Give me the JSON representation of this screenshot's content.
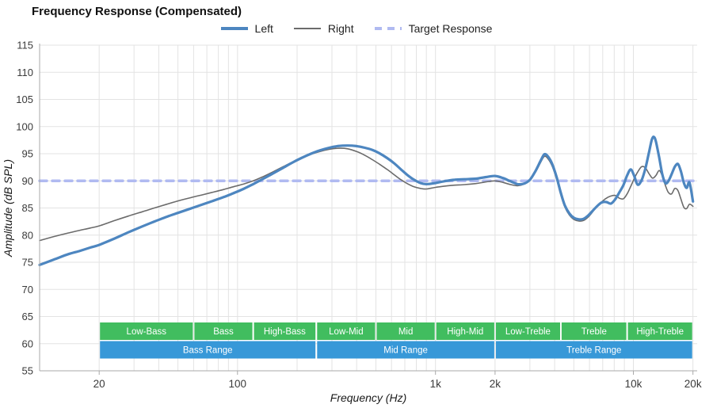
{
  "title": "Frequency Response (Compensated)",
  "legend": {
    "items": [
      {
        "label": "Left",
        "color": "#4d86c0",
        "style": "solid",
        "thickness": 4
      },
      {
        "label": "Right",
        "color": "#6b6b6b",
        "style": "solid",
        "thickness": 2
      },
      {
        "label": "Target Response",
        "color": "#b0baf1",
        "style": "dashed",
        "thickness": 4
      }
    ]
  },
  "chart_data": {
    "type": "line",
    "title": "Frequency Response (Compensated)",
    "xlabel": "Frequency (Hz)",
    "ylabel": "Amplitude (dB SPL)",
    "x_scale": "log",
    "x_range": [
      10,
      21000
    ],
    "y_range": [
      55,
      115
    ],
    "y_ticks": [
      55,
      60,
      65,
      70,
      75,
      80,
      85,
      90,
      95,
      100,
      105,
      110,
      115
    ],
    "x_ticks": [
      {
        "value": 20,
        "label": "20"
      },
      {
        "value": 100,
        "label": "100"
      },
      {
        "value": 1000,
        "label": "1k"
      },
      {
        "value": 2000,
        "label": "2k"
      },
      {
        "value": 10000,
        "label": "10k"
      },
      {
        "value": 20000,
        "label": "20k"
      }
    ],
    "x_gridlines": [
      20,
      30,
      40,
      50,
      60,
      70,
      80,
      90,
      100,
      200,
      300,
      400,
      500,
      600,
      700,
      800,
      900,
      1000,
      2000,
      3000,
      4000,
      5000,
      6000,
      7000,
      8000,
      9000,
      10000,
      20000
    ],
    "target_level": 90,
    "colors": {
      "grid": "#e3e3e3",
      "axis": "#a9a9a9",
      "tick_text": "#3a3a3a",
      "axis_title_text": "#1a1a1a",
      "band_green": "#41bd5f",
      "band_blue": "#3798d8",
      "band_text": "#ffffff"
    },
    "series": [
      {
        "name": "Left",
        "color": "#4d86c0",
        "width": 3.2,
        "dash": null,
        "points": [
          [
            10,
            74.5
          ],
          [
            12,
            75.6
          ],
          [
            14,
            76.5
          ],
          [
            16,
            77.1
          ],
          [
            18,
            77.7
          ],
          [
            20,
            78.2
          ],
          [
            24,
            79.4
          ],
          [
            28,
            80.5
          ],
          [
            33,
            81.6
          ],
          [
            38,
            82.5
          ],
          [
            44,
            83.4
          ],
          [
            50,
            84.1
          ],
          [
            58,
            84.9
          ],
          [
            66,
            85.6
          ],
          [
            75,
            86.3
          ],
          [
            85,
            87.0
          ],
          [
            95,
            87.7
          ],
          [
            107,
            88.5
          ],
          [
            120,
            89.4
          ],
          [
            135,
            90.4
          ],
          [
            150,
            91.3
          ],
          [
            170,
            92.4
          ],
          [
            190,
            93.4
          ],
          [
            210,
            94.2
          ],
          [
            235,
            95.0
          ],
          [
            260,
            95.6
          ],
          [
            290,
            96.1
          ],
          [
            320,
            96.4
          ],
          [
            360,
            96.5
          ],
          [
            400,
            96.4
          ],
          [
            440,
            96.1
          ],
          [
            480,
            95.7
          ],
          [
            520,
            95.1
          ],
          [
            570,
            94.2
          ],
          [
            620,
            93.2
          ],
          [
            670,
            92.1
          ],
          [
            720,
            91.1
          ],
          [
            780,
            90.2
          ],
          [
            840,
            89.6
          ],
          [
            900,
            89.4
          ],
          [
            1000,
            89.6
          ],
          [
            1100,
            89.9
          ],
          [
            1250,
            90.2
          ],
          [
            1400,
            90.3
          ],
          [
            1600,
            90.4
          ],
          [
            1800,
            90.7
          ],
          [
            2000,
            90.9
          ],
          [
            2200,
            90.5
          ],
          [
            2400,
            89.9
          ],
          [
            2600,
            89.4
          ],
          [
            2800,
            89.5
          ],
          [
            3000,
            90.2
          ],
          [
            3200,
            91.8
          ],
          [
            3400,
            93.7
          ],
          [
            3550,
            94.9
          ],
          [
            3700,
            94.5
          ],
          [
            3900,
            93.0
          ],
          [
            4100,
            90.6
          ],
          [
            4300,
            87.8
          ],
          [
            4500,
            85.5
          ],
          [
            4750,
            84.0
          ],
          [
            5000,
            83.2
          ],
          [
            5300,
            82.9
          ],
          [
            5600,
            83.0
          ],
          [
            5900,
            83.6
          ],
          [
            6200,
            84.4
          ],
          [
            6500,
            85.2
          ],
          [
            6900,
            86.0
          ],
          [
            7300,
            86.1
          ],
          [
            7700,
            85.8
          ],
          [
            8100,
            86.6
          ],
          [
            8500,
            87.9
          ],
          [
            8900,
            89.2
          ],
          [
            9300,
            91.0
          ],
          [
            9700,
            92.1
          ],
          [
            10100,
            90.9
          ],
          [
            10500,
            89.3
          ],
          [
            11000,
            90.1
          ],
          [
            11500,
            92.3
          ],
          [
            12000,
            95.3
          ],
          [
            12400,
            97.6
          ],
          [
            12700,
            98.1
          ],
          [
            13000,
            97.2
          ],
          [
            13500,
            94.3
          ],
          [
            14000,
            91.2
          ],
          [
            14500,
            89.6
          ],
          [
            15000,
            89.9
          ],
          [
            15600,
            91.2
          ],
          [
            16200,
            92.6
          ],
          [
            16800,
            93.1
          ],
          [
            17400,
            91.7
          ],
          [
            18000,
            89.6
          ],
          [
            18600,
            88.7
          ],
          [
            19200,
            89.7
          ],
          [
            20000,
            86.2
          ]
        ]
      },
      {
        "name": "Right",
        "color": "#6b6b6b",
        "width": 1.6,
        "dash": null,
        "points": [
          [
            10,
            79.0
          ],
          [
            12,
            79.8
          ],
          [
            14,
            80.4
          ],
          [
            16,
            80.9
          ],
          [
            18,
            81.3
          ],
          [
            20,
            81.7
          ],
          [
            24,
            82.7
          ],
          [
            28,
            83.5
          ],
          [
            33,
            84.3
          ],
          [
            38,
            85.0
          ],
          [
            44,
            85.7
          ],
          [
            50,
            86.3
          ],
          [
            58,
            86.9
          ],
          [
            66,
            87.4
          ],
          [
            75,
            87.9
          ],
          [
            85,
            88.4
          ],
          [
            95,
            88.9
          ],
          [
            107,
            89.4
          ],
          [
            120,
            90.0
          ],
          [
            135,
            90.8
          ],
          [
            150,
            91.6
          ],
          [
            170,
            92.6
          ],
          [
            190,
            93.5
          ],
          [
            210,
            94.2
          ],
          [
            235,
            94.9
          ],
          [
            260,
            95.4
          ],
          [
            290,
            95.8
          ],
          [
            320,
            96.0
          ],
          [
            360,
            95.9
          ],
          [
            400,
            95.4
          ],
          [
            440,
            94.7
          ],
          [
            480,
            93.9
          ],
          [
            520,
            93.1
          ],
          [
            570,
            92.1
          ],
          [
            620,
            91.1
          ],
          [
            670,
            90.2
          ],
          [
            720,
            89.5
          ],
          [
            780,
            88.9
          ],
          [
            840,
            88.6
          ],
          [
            900,
            88.5
          ],
          [
            1000,
            88.8
          ],
          [
            1100,
            89.0
          ],
          [
            1250,
            89.2
          ],
          [
            1400,
            89.3
          ],
          [
            1600,
            89.5
          ],
          [
            1800,
            89.8
          ],
          [
            2000,
            90.0
          ],
          [
            2200,
            89.7
          ],
          [
            2400,
            89.3
          ],
          [
            2600,
            89.1
          ],
          [
            2800,
            89.4
          ],
          [
            3000,
            90.2
          ],
          [
            3200,
            91.6
          ],
          [
            3400,
            93.4
          ],
          [
            3550,
            94.5
          ],
          [
            3700,
            94.1
          ],
          [
            3900,
            92.6
          ],
          [
            4100,
            90.2
          ],
          [
            4300,
            87.4
          ],
          [
            4500,
            85.2
          ],
          [
            4750,
            83.7
          ],
          [
            5000,
            82.9
          ],
          [
            5300,
            82.6
          ],
          [
            5600,
            82.7
          ],
          [
            5900,
            83.3
          ],
          [
            6200,
            84.2
          ],
          [
            6500,
            85.2
          ],
          [
            6900,
            86.1
          ],
          [
            7300,
            86.8
          ],
          [
            7700,
            87.2
          ],
          [
            8100,
            87.3
          ],
          [
            8500,
            86.8
          ],
          [
            8900,
            86.7
          ],
          [
            9300,
            87.6
          ],
          [
            9700,
            89.0
          ],
          [
            10100,
            90.4
          ],
          [
            10500,
            91.6
          ],
          [
            11000,
            92.6
          ],
          [
            11500,
            92.4
          ],
          [
            12000,
            91.3
          ],
          [
            12500,
            90.5
          ],
          [
            13000,
            91.0
          ],
          [
            13500,
            91.9
          ],
          [
            14000,
            90.9
          ],
          [
            14500,
            89.2
          ],
          [
            15000,
            87.9
          ],
          [
            15600,
            87.6
          ],
          [
            16200,
            88.6
          ],
          [
            16800,
            88.2
          ],
          [
            17400,
            86.6
          ],
          [
            18000,
            85.1
          ],
          [
            18600,
            84.9
          ],
          [
            19200,
            85.7
          ],
          [
            20000,
            85.3
          ]
        ]
      },
      {
        "name": "Target Response",
        "color": "#b0baf1",
        "width": 3.5,
        "dash": "9 7",
        "points": [
          [
            10,
            90
          ],
          [
            21000,
            90
          ]
        ]
      }
    ],
    "band_rows": [
      {
        "name": "sub-bands",
        "color": "#41bd5f",
        "segments": [
          {
            "label": "Low-Bass",
            "from": 20,
            "to": 60
          },
          {
            "label": "Bass",
            "from": 60,
            "to": 120
          },
          {
            "label": "High-Bass",
            "from": 120,
            "to": 250
          },
          {
            "label": "Low-Mid",
            "from": 250,
            "to": 500
          },
          {
            "label": "Mid",
            "from": 500,
            "to": 1000
          },
          {
            "label": "High-Mid",
            "from": 1000,
            "to": 2000
          },
          {
            "label": "Low-Treble",
            "from": 2000,
            "to": 4300
          },
          {
            "label": "Treble",
            "from": 4300,
            "to": 9300
          },
          {
            "label": "High-Treble",
            "from": 9300,
            "to": 20000
          }
        ]
      },
      {
        "name": "main-bands",
        "color": "#3798d8",
        "segments": [
          {
            "label": "Bass Range",
            "from": 20,
            "to": 250
          },
          {
            "label": "Mid Range",
            "from": 250,
            "to": 2000
          },
          {
            "label": "Treble Range",
            "from": 2000,
            "to": 20000
          }
        ]
      }
    ]
  }
}
